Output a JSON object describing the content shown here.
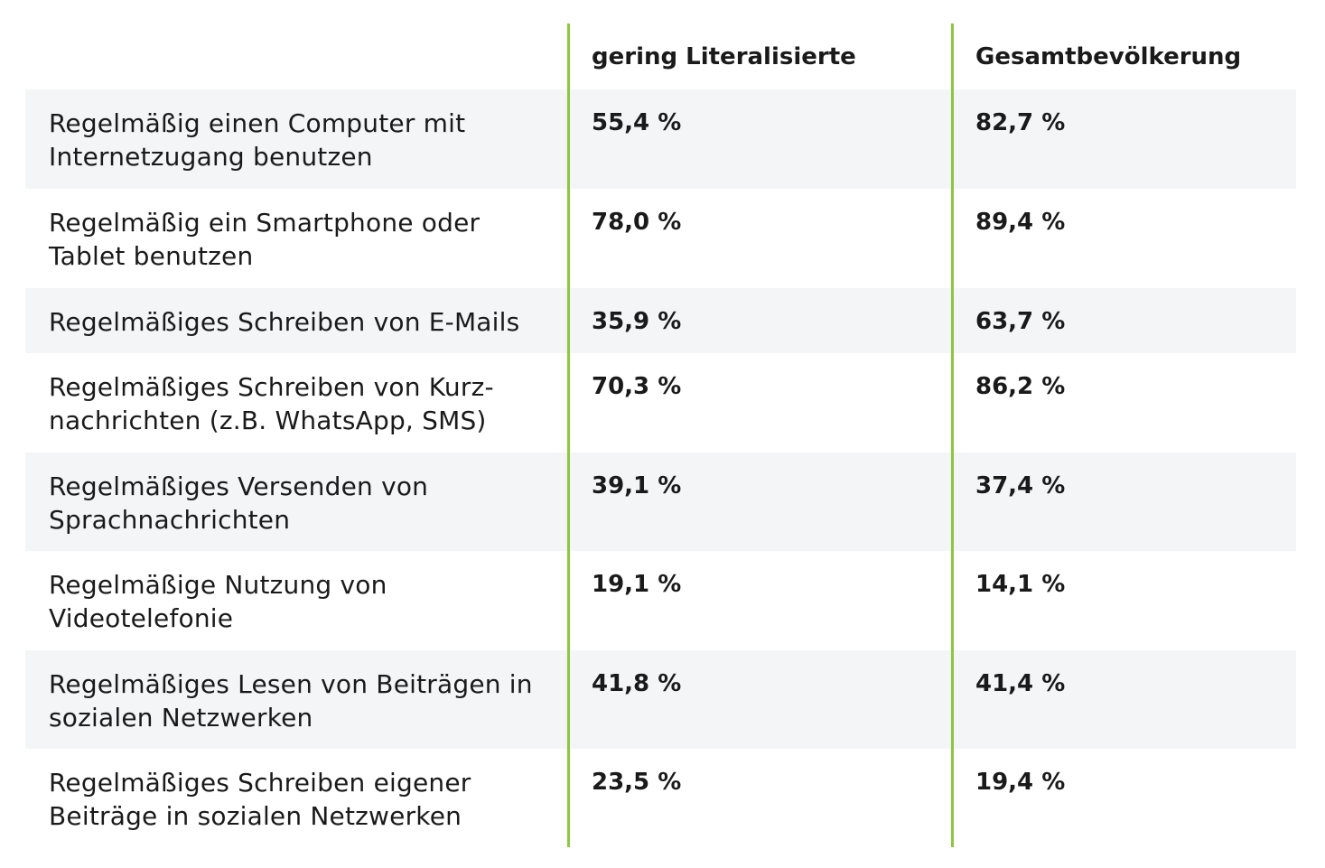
{
  "table": {
    "headers": {
      "col1": "gering Literalisierte",
      "col2": "Gesamtbevölkerung"
    },
    "rows": [
      {
        "label": "Regelmäßig einen Computer mit\nInternetzugang benutzen",
        "col1": "55,4 %",
        "col2": "82,7 %"
      },
      {
        "label": "Regelmäßig ein Smartphone oder\nTablet benutzen",
        "col1": "78,0 %",
        "col2": "89,4 %"
      },
      {
        "label": "Regelmäßiges Schreiben von E-Mails",
        "col1": "35,9 %",
        "col2": "63,7 %"
      },
      {
        "label": "Regelmäßiges Schreiben von Kurz-\nnachrichten (z.B. WhatsApp, SMS)",
        "col1": "70,3 %",
        "col2": "86,2 %"
      },
      {
        "label": "Regelmäßiges Versenden von\nSprachnachrichten",
        "col1": "39,1 %",
        "col2": "37,4 %"
      },
      {
        "label": "Regelmäßige Nutzung von\nVideotelefonie",
        "col1": "19,1 %",
        "col2": "14,1 %"
      },
      {
        "label": "Regelmäßiges Lesen von Beiträgen in\nsozialen Netzwerken",
        "col1": "41,8 %",
        "col2": "41,4 %"
      },
      {
        "label": "Regelmäßiges Schreiben eigener\nBeiträge in sozialen Netzwerken",
        "col1": "23,5 %",
        "col2": "19,4 %"
      }
    ],
    "colors": {
      "divider": "#8dc63f",
      "row_shade": "#f4f5f7",
      "text": "#1a1a1a"
    }
  }
}
